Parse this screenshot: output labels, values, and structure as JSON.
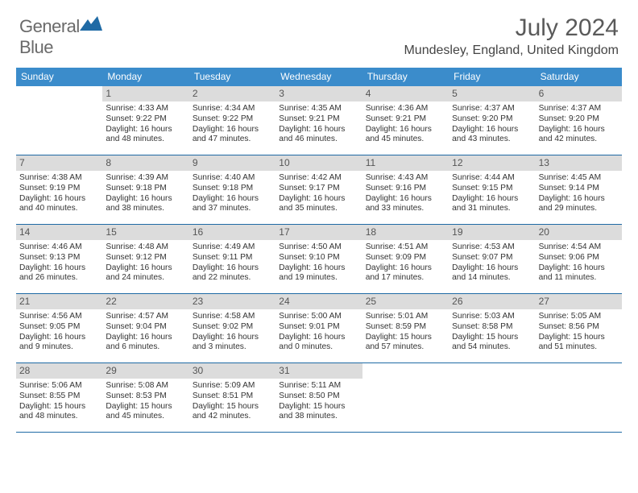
{
  "logo": {
    "word1": "General",
    "word2": "Blue"
  },
  "title": "July 2024",
  "location": "Mundesley, England, United Kingdom",
  "colors": {
    "header_bg": "#3b8ccb",
    "header_text": "#ffffff",
    "border": "#1f6aa5",
    "daynum_bg": "#dcdcdc",
    "text": "#333333"
  },
  "weekdays": [
    "Sunday",
    "Monday",
    "Tuesday",
    "Wednesday",
    "Thursday",
    "Friday",
    "Saturday"
  ],
  "first_weekday_offset": 1,
  "days": [
    {
      "n": 1,
      "sunrise": "4:33 AM",
      "sunset": "9:22 PM",
      "dl": "16 hours and 48 minutes."
    },
    {
      "n": 2,
      "sunrise": "4:34 AM",
      "sunset": "9:22 PM",
      "dl": "16 hours and 47 minutes."
    },
    {
      "n": 3,
      "sunrise": "4:35 AM",
      "sunset": "9:21 PM",
      "dl": "16 hours and 46 minutes."
    },
    {
      "n": 4,
      "sunrise": "4:36 AM",
      "sunset": "9:21 PM",
      "dl": "16 hours and 45 minutes."
    },
    {
      "n": 5,
      "sunrise": "4:37 AM",
      "sunset": "9:20 PM",
      "dl": "16 hours and 43 minutes."
    },
    {
      "n": 6,
      "sunrise": "4:37 AM",
      "sunset": "9:20 PM",
      "dl": "16 hours and 42 minutes."
    },
    {
      "n": 7,
      "sunrise": "4:38 AM",
      "sunset": "9:19 PM",
      "dl": "16 hours and 40 minutes."
    },
    {
      "n": 8,
      "sunrise": "4:39 AM",
      "sunset": "9:18 PM",
      "dl": "16 hours and 38 minutes."
    },
    {
      "n": 9,
      "sunrise": "4:40 AM",
      "sunset": "9:18 PM",
      "dl": "16 hours and 37 minutes."
    },
    {
      "n": 10,
      "sunrise": "4:42 AM",
      "sunset": "9:17 PM",
      "dl": "16 hours and 35 minutes."
    },
    {
      "n": 11,
      "sunrise": "4:43 AM",
      "sunset": "9:16 PM",
      "dl": "16 hours and 33 minutes."
    },
    {
      "n": 12,
      "sunrise": "4:44 AM",
      "sunset": "9:15 PM",
      "dl": "16 hours and 31 minutes."
    },
    {
      "n": 13,
      "sunrise": "4:45 AM",
      "sunset": "9:14 PM",
      "dl": "16 hours and 29 minutes."
    },
    {
      "n": 14,
      "sunrise": "4:46 AM",
      "sunset": "9:13 PM",
      "dl": "16 hours and 26 minutes."
    },
    {
      "n": 15,
      "sunrise": "4:48 AM",
      "sunset": "9:12 PM",
      "dl": "16 hours and 24 minutes."
    },
    {
      "n": 16,
      "sunrise": "4:49 AM",
      "sunset": "9:11 PM",
      "dl": "16 hours and 22 minutes."
    },
    {
      "n": 17,
      "sunrise": "4:50 AM",
      "sunset": "9:10 PM",
      "dl": "16 hours and 19 minutes."
    },
    {
      "n": 18,
      "sunrise": "4:51 AM",
      "sunset": "9:09 PM",
      "dl": "16 hours and 17 minutes."
    },
    {
      "n": 19,
      "sunrise": "4:53 AM",
      "sunset": "9:07 PM",
      "dl": "16 hours and 14 minutes."
    },
    {
      "n": 20,
      "sunrise": "4:54 AM",
      "sunset": "9:06 PM",
      "dl": "16 hours and 11 minutes."
    },
    {
      "n": 21,
      "sunrise": "4:56 AM",
      "sunset": "9:05 PM",
      "dl": "16 hours and 9 minutes."
    },
    {
      "n": 22,
      "sunrise": "4:57 AM",
      "sunset": "9:04 PM",
      "dl": "16 hours and 6 minutes."
    },
    {
      "n": 23,
      "sunrise": "4:58 AM",
      "sunset": "9:02 PM",
      "dl": "16 hours and 3 minutes."
    },
    {
      "n": 24,
      "sunrise": "5:00 AM",
      "sunset": "9:01 PM",
      "dl": "16 hours and 0 minutes."
    },
    {
      "n": 25,
      "sunrise": "5:01 AM",
      "sunset": "8:59 PM",
      "dl": "15 hours and 57 minutes."
    },
    {
      "n": 26,
      "sunrise": "5:03 AM",
      "sunset": "8:58 PM",
      "dl": "15 hours and 54 minutes."
    },
    {
      "n": 27,
      "sunrise": "5:05 AM",
      "sunset": "8:56 PM",
      "dl": "15 hours and 51 minutes."
    },
    {
      "n": 28,
      "sunrise": "5:06 AM",
      "sunset": "8:55 PM",
      "dl": "15 hours and 48 minutes."
    },
    {
      "n": 29,
      "sunrise": "5:08 AM",
      "sunset": "8:53 PM",
      "dl": "15 hours and 45 minutes."
    },
    {
      "n": 30,
      "sunrise": "5:09 AM",
      "sunset": "8:51 PM",
      "dl": "15 hours and 42 minutes."
    },
    {
      "n": 31,
      "sunrise": "5:11 AM",
      "sunset": "8:50 PM",
      "dl": "15 hours and 38 minutes."
    }
  ],
  "labels": {
    "sunrise": "Sunrise:",
    "sunset": "Sunset:",
    "daylight": "Daylight:"
  }
}
